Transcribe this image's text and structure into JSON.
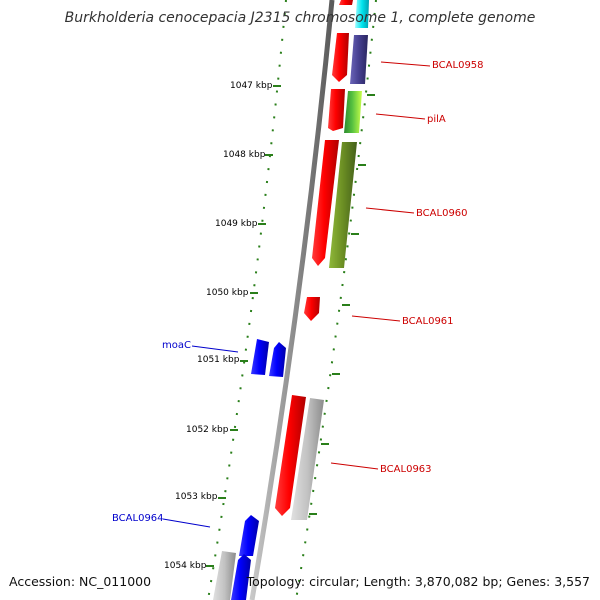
{
  "title": "Burkholderia cenocepacia J2315 chromosome 1, complete genome",
  "footer": {
    "accession": "Accession: NC_011000",
    "topology": "Topology: circular; Length: 3,870,082 bp; Genes: 3,557"
  },
  "colors": {
    "backbone": "#8f8f8f",
    "tick": "#2a7f1a",
    "label_forward": "#cc0000",
    "label_reverse": "#0000cc",
    "cds": "#ff0000",
    "gene_blue": "#0000ff",
    "grey": "#bdbdbd",
    "purple": "#453f8f",
    "olive": "#6b8e23",
    "lime": "#7fe030",
    "cyan": "#00e5ee"
  },
  "ticks": [
    {
      "label": "1047 kbp"
    },
    {
      "label": "1048 kbp"
    },
    {
      "label": "1049 kbp"
    },
    {
      "label": "1050 kbp"
    },
    {
      "label": "1051 kbp"
    },
    {
      "label": "1052 kbp"
    },
    {
      "label": "1053 kbp"
    },
    {
      "label": "1054 kbp"
    }
  ],
  "gene_labels": [
    {
      "name": "BCAL0958",
      "strand": "forward"
    },
    {
      "name": "pilA",
      "strand": "forward"
    },
    {
      "name": "BCAL0960",
      "strand": "forward"
    },
    {
      "name": "BCAL0961",
      "strand": "forward"
    },
    {
      "name": "moaC",
      "strand": "reverse"
    },
    {
      "name": "BCAL0963",
      "strand": "forward"
    },
    {
      "name": "BCAL0964",
      "strand": "reverse"
    }
  ]
}
